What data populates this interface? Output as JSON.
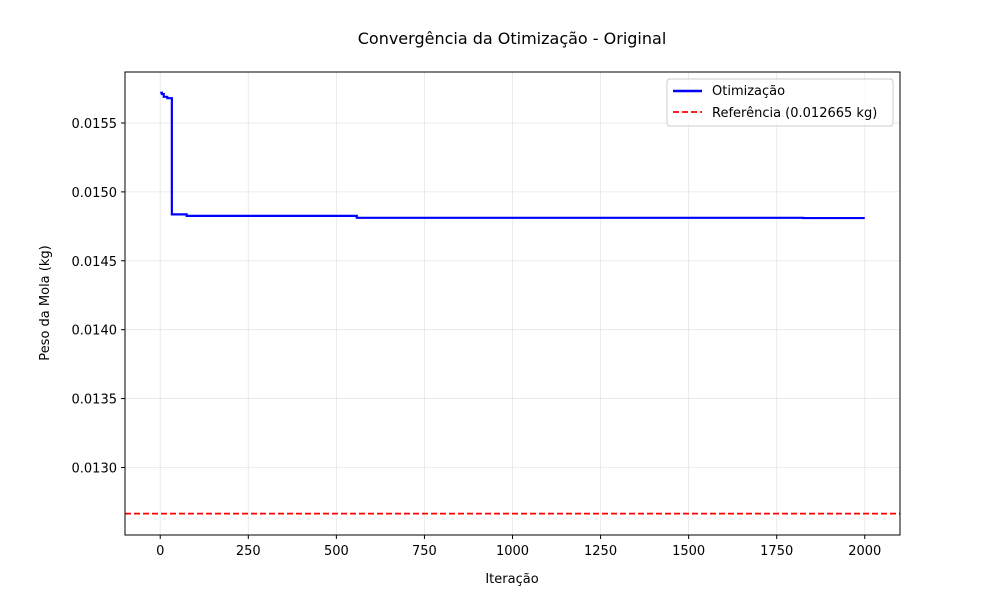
{
  "chart_data": {
    "type": "line",
    "title": "Convergência da Otimização - Original",
    "xlabel": "Iteração",
    "ylabel": "Peso da Mola (kg)",
    "xlim": [
      -100,
      2100
    ],
    "ylim": [
      0.01251,
      0.01587
    ],
    "xticks": [
      0,
      250,
      500,
      750,
      1000,
      1250,
      1500,
      1750,
      2000
    ],
    "xtick_labels": [
      "0",
      "250",
      "500",
      "750",
      "1000",
      "1250",
      "1500",
      "1750",
      "2000"
    ],
    "yticks": [
      0.013,
      0.0135,
      0.014,
      0.0145,
      0.015,
      0.0155
    ],
    "ytick_labels": [
      "0.0130",
      "0.0135",
      "0.0140",
      "0.0145",
      "0.0150",
      "0.0155"
    ],
    "grid": true,
    "legend_position": "top-right",
    "series": [
      {
        "name": "Otimização",
        "color": "#0000ff",
        "style": "solid-step",
        "x": [
          0,
          5,
          10,
          20,
          30,
          32,
          33,
          70,
          75,
          555,
          558,
          1820,
          1825,
          2000
        ],
        "y": [
          0.01572,
          0.01571,
          0.01569,
          0.01568,
          0.01568,
          0.01568,
          0.014837,
          0.014837,
          0.014826,
          0.014826,
          0.014812,
          0.014812,
          0.01481,
          0.01481
        ]
      }
    ],
    "reference": {
      "name": "Referência (0.012665 kg)",
      "value": 0.012665,
      "color": "#ff0000",
      "style": "dashed"
    }
  }
}
